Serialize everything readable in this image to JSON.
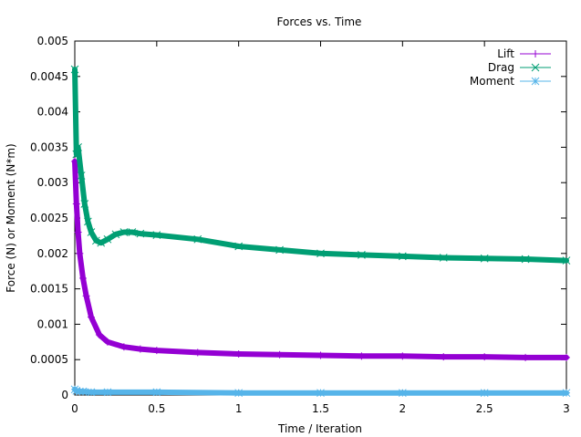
{
  "chart_data": {
    "type": "line",
    "title": "Forces vs. Time",
    "xlabel": "Time / Iteration",
    "ylabel": "Force (N) or Moment (N*m)",
    "xlim": [
      0,
      3
    ],
    "ylim": [
      0,
      0.005
    ],
    "x_ticks": [
      "0",
      "0.5",
      "1",
      "1.5",
      "2",
      "2.5",
      "3"
    ],
    "y_ticks": [
      "0",
      "0.0005",
      "0.001",
      "0.0015",
      "0.002",
      "0.0025",
      "0.003",
      "0.0035",
      "0.004",
      "0.0045",
      "0.005"
    ],
    "grid": false,
    "legend_position": "top-right",
    "series": [
      {
        "name": "Lift",
        "color": "#9400d3",
        "marker": "plus",
        "x": [
          0,
          0.01,
          0.02,
          0.03,
          0.05,
          0.07,
          0.1,
          0.15,
          0.2,
          0.3,
          0.4,
          0.5,
          0.75,
          1.0,
          1.25,
          1.5,
          1.75,
          2.0,
          2.25,
          2.5,
          2.75,
          3.0
        ],
        "y": [
          0.0033,
          0.0027,
          0.0023,
          0.002,
          0.00165,
          0.0014,
          0.0011,
          0.00085,
          0.00075,
          0.00068,
          0.00065,
          0.00063,
          0.0006,
          0.00058,
          0.00057,
          0.00056,
          0.00055,
          0.00055,
          0.00054,
          0.00054,
          0.00053,
          0.00053
        ]
      },
      {
        "name": "Drag",
        "color": "#009e73",
        "marker": "cross",
        "x": [
          0,
          0.01,
          0.02,
          0.04,
          0.06,
          0.08,
          0.1,
          0.13,
          0.16,
          0.2,
          0.25,
          0.3,
          0.35,
          0.4,
          0.5,
          0.75,
          1.0,
          1.25,
          1.5,
          1.75,
          2.0,
          2.25,
          2.5,
          2.75,
          3.0
        ],
        "y": [
          0.0046,
          0.0034,
          0.0035,
          0.0031,
          0.0027,
          0.00245,
          0.0023,
          0.00218,
          0.00215,
          0.0022,
          0.00227,
          0.0023,
          0.0023,
          0.00228,
          0.00226,
          0.0022,
          0.0021,
          0.00205,
          0.002,
          0.00198,
          0.00196,
          0.00194,
          0.00193,
          0.00192,
          0.0019
        ]
      },
      {
        "name": "Moment",
        "color": "#56b4e9",
        "marker": "star",
        "x": [
          0,
          0.01,
          0.03,
          0.05,
          0.1,
          0.2,
          0.5,
          1.0,
          1.5,
          2.0,
          2.5,
          3.0
        ],
        "y": [
          8e-05,
          6e-05,
          5e-05,
          5e-05,
          4e-05,
          4e-05,
          4e-05,
          3e-05,
          3e-05,
          3e-05,
          3e-05,
          3e-05
        ]
      }
    ]
  }
}
